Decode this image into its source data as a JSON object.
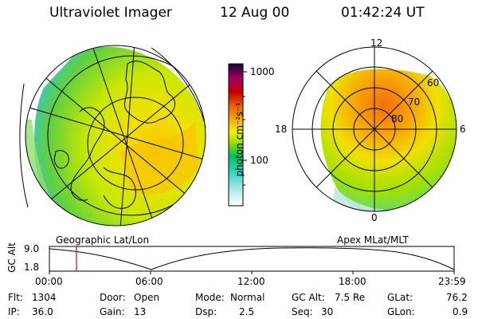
{
  "header": {
    "instrument": "Ultraviolet Imager",
    "date": "12 Aug 00",
    "time": "01:42:24 UT"
  },
  "colorbar": {
    "unit_label": "photon cm⁻²s⁻¹",
    "ticks": [
      "1000",
      "100"
    ]
  },
  "left_panel": {
    "caption": "Geographic Lat/Lon"
  },
  "right_panel": {
    "caption": "Apex MLat/MLT",
    "mlt_labels": [
      "12",
      "18",
      "6",
      "0"
    ],
    "mlat_labels": [
      "60",
      "70",
      "80"
    ]
  },
  "altitude_plot": {
    "ylabel": "GC Alt",
    "yticks": [
      "9.0",
      "1.8"
    ],
    "xticks": [
      "00:00",
      "06:00",
      "12:00",
      "18:00",
      "23:59"
    ]
  },
  "info": {
    "flt_label": "Flt:",
    "flt": "1304",
    "ip_label": "IP:",
    "ip": "36.0",
    "door_label": "Door:",
    "door": "Open",
    "gain_label": "Gain:",
    "gain": "13",
    "mode_label": "Mode:",
    "mode": "Normal",
    "dsp_label": "Dsp:",
    "dsp": "2.5",
    "gcalt_label": "GC Alt:",
    "gcalt": "7.5 Re",
    "seq_label": "Seq:",
    "seq": "30",
    "glat_label": "GLat:",
    "glat": "76.2",
    "glon_label": "GLon:",
    "glon": "0.9"
  },
  "colors": {
    "scale": [
      "#ffffff",
      "#bfe8e8",
      "#40d8c8",
      "#00c060",
      "#a0e000",
      "#f0f000",
      "#f8b000",
      "#f06000",
      "#c00000",
      "#a00060",
      "#1a0040"
    ]
  }
}
